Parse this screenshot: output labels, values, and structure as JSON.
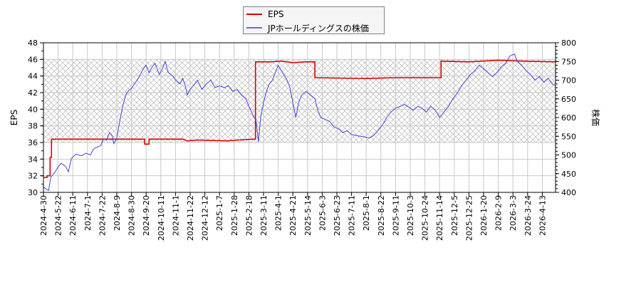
{
  "chart_data": {
    "type": "line",
    "title": "",
    "legend": {
      "position": "top-center",
      "entries": [
        {
          "label": "EPS",
          "color": "#dd0000"
        },
        {
          "label": "JPホールディングスの株価",
          "color": "#4444dd"
        }
      ]
    },
    "grid": true,
    "shaded_band": {
      "y_left_from": 36,
      "y_left_to": 46,
      "pattern": "crosshatch"
    },
    "xlabel": "",
    "x_tick_labels": [
      "2024-4-30",
      "2024-5-22",
      "2024-6-11",
      "2024-7-1",
      "2024-7-22",
      "2024-8-9",
      "2024-8-30",
      "2024-9-20",
      "2024-10-11",
      "2024-11-1",
      "2024-11-22",
      "2024-12-12",
      "2025-1-7",
      "2025-1-28",
      "2025-2-18",
      "2025-3-11",
      "2025-4-1",
      "2025-4-21",
      "2025-5-14",
      "2025-6-3",
      "2025-6-23",
      "2025-7-11",
      "2025-8-1",
      "2025-8-22",
      "2025-9-11",
      "2025-10-3",
      "2025-10-24",
      "2025-11-14",
      "2025-12-5",
      "2025-12-25",
      "2026-1-20",
      "2026-2-9",
      "2026-3-3",
      "2026-3-24",
      "2026-4-13"
    ],
    "y_left": {
      "label": "EPS",
      "range": [
        30,
        48
      ],
      "ticks": [
        30,
        32,
        34,
        36,
        38,
        40,
        42,
        44,
        46,
        48
      ]
    },
    "y_right": {
      "label": "株価",
      "range": [
        400,
        800
      ],
      "ticks": [
        400,
        450,
        500,
        550,
        600,
        650,
        700,
        750,
        800
      ]
    },
    "series": [
      {
        "name": "EPS",
        "axis": "left",
        "color": "#dd0000",
        "step": true,
        "points": [
          [
            0,
            31.8
          ],
          [
            0.25,
            31.8
          ],
          [
            0.25,
            32.0
          ],
          [
            0.45,
            32.0
          ],
          [
            0.45,
            34.2
          ],
          [
            0.55,
            34.2
          ],
          [
            0.55,
            36.4
          ],
          [
            6.9,
            36.4
          ],
          [
            6.9,
            35.8
          ],
          [
            7.2,
            35.8
          ],
          [
            7.2,
            36.4
          ],
          [
            9.5,
            36.4
          ],
          [
            9.8,
            36.2
          ],
          [
            10.5,
            36.3
          ],
          [
            12.5,
            36.2
          ],
          [
            13.3,
            36.3
          ],
          [
            14.3,
            36.4
          ],
          [
            14.45,
            36.4
          ],
          [
            14.45,
            45.7
          ],
          [
            15.5,
            45.7
          ],
          [
            16.2,
            45.8
          ],
          [
            17.0,
            45.6
          ],
          [
            17.9,
            45.7
          ],
          [
            18.5,
            45.7
          ],
          [
            18.5,
            43.8
          ],
          [
            22.0,
            43.7
          ],
          [
            24.0,
            43.8
          ],
          [
            26.0,
            43.8
          ],
          [
            27.1,
            43.8
          ],
          [
            27.1,
            45.8
          ],
          [
            29.0,
            45.7
          ],
          [
            31.0,
            45.9
          ],
          [
            32.5,
            45.8
          ],
          [
            35.0,
            45.7
          ]
        ]
      },
      {
        "name": "JPホールディングスの株価",
        "axis": "right",
        "color": "#4444dd",
        "points": [
          [
            0,
            415
          ],
          [
            0.2,
            408
          ],
          [
            0.35,
            405
          ],
          [
            0.5,
            440
          ],
          [
            0.8,
            455
          ],
          [
            1.0,
            468
          ],
          [
            1.2,
            478
          ],
          [
            1.5,
            470
          ],
          [
            1.7,
            455
          ],
          [
            1.9,
            490
          ],
          [
            2.2,
            502
          ],
          [
            2.6,
            498
          ],
          [
            2.9,
            505
          ],
          [
            3.2,
            500
          ],
          [
            3.4,
            515
          ],
          [
            3.6,
            520
          ],
          [
            3.9,
            525
          ],
          [
            4.1,
            543
          ],
          [
            4.3,
            540
          ],
          [
            4.5,
            560
          ],
          [
            4.7,
            550
          ],
          [
            4.8,
            530
          ],
          [
            5.0,
            545
          ],
          [
            5.2,
            590
          ],
          [
            5.4,
            630
          ],
          [
            5.6,
            660
          ],
          [
            5.8,
            672
          ],
          [
            6.0,
            678
          ],
          [
            6.2,
            690
          ],
          [
            6.4,
            700
          ],
          [
            6.6,
            715
          ],
          [
            6.8,
            730
          ],
          [
            7.0,
            740
          ],
          [
            7.2,
            720
          ],
          [
            7.4,
            735
          ],
          [
            7.6,
            745
          ],
          [
            7.8,
            725
          ],
          [
            7.9,
            715
          ],
          [
            8.1,
            730
          ],
          [
            8.3,
            750
          ],
          [
            8.5,
            720
          ],
          [
            8.8,
            712
          ],
          [
            9.0,
            700
          ],
          [
            9.3,
            690
          ],
          [
            9.5,
            705
          ],
          [
            9.7,
            680
          ],
          [
            9.8,
            660
          ],
          [
            10.0,
            675
          ],
          [
            10.3,
            690
          ],
          [
            10.5,
            700
          ],
          [
            10.8,
            675
          ],
          [
            11.1,
            690
          ],
          [
            11.4,
            700
          ],
          [
            11.7,
            680
          ],
          [
            12.0,
            685
          ],
          [
            12.3,
            680
          ],
          [
            12.6,
            685
          ],
          [
            12.9,
            670
          ],
          [
            13.2,
            675
          ],
          [
            13.5,
            660
          ],
          [
            13.8,
            650
          ],
          [
            14.0,
            630
          ],
          [
            14.3,
            605
          ],
          [
            14.5,
            590
          ],
          [
            14.65,
            535
          ],
          [
            14.8,
            600
          ],
          [
            15.0,
            640
          ],
          [
            15.2,
            670
          ],
          [
            15.4,
            690
          ],
          [
            15.6,
            700
          ],
          [
            15.8,
            720
          ],
          [
            16.0,
            740
          ],
          [
            16.3,
            720
          ],
          [
            16.6,
            700
          ],
          [
            16.8,
            680
          ],
          [
            17.0,
            640
          ],
          [
            17.2,
            600
          ],
          [
            17.4,
            640
          ],
          [
            17.6,
            660
          ],
          [
            17.9,
            670
          ],
          [
            18.2,
            660
          ],
          [
            18.5,
            650
          ],
          [
            18.7,
            620
          ],
          [
            18.9,
            600
          ],
          [
            19.2,
            595
          ],
          [
            19.5,
            590
          ],
          [
            19.8,
            575
          ],
          [
            20.1,
            570
          ],
          [
            20.4,
            560
          ],
          [
            20.7,
            565
          ],
          [
            21.0,
            555
          ],
          [
            21.3,
            552
          ],
          [
            21.6,
            550
          ],
          [
            21.9,
            548
          ],
          [
            22.2,
            545
          ],
          [
            22.5,
            552
          ],
          [
            22.8,
            565
          ],
          [
            23.1,
            580
          ],
          [
            23.4,
            600
          ],
          [
            23.7,
            615
          ],
          [
            24.0,
            625
          ],
          [
            24.3,
            630
          ],
          [
            24.6,
            635
          ],
          [
            24.9,
            628
          ],
          [
            25.2,
            620
          ],
          [
            25.5,
            630
          ],
          [
            25.8,
            625
          ],
          [
            26.1,
            615
          ],
          [
            26.4,
            630
          ],
          [
            26.7,
            620
          ],
          [
            27.0,
            600
          ],
          [
            27.3,
            615
          ],
          [
            27.6,
            630
          ],
          [
            27.9,
            650
          ],
          [
            28.2,
            665
          ],
          [
            28.5,
            685
          ],
          [
            28.8,
            700
          ],
          [
            29.1,
            715
          ],
          [
            29.4,
            725
          ],
          [
            29.7,
            740
          ],
          [
            30.0,
            730
          ],
          [
            30.3,
            720
          ],
          [
            30.6,
            710
          ],
          [
            30.9,
            720
          ],
          [
            31.2,
            735
          ],
          [
            31.5,
            745
          ],
          [
            31.8,
            765
          ],
          [
            32.1,
            770
          ],
          [
            32.3,
            750
          ],
          [
            32.6,
            740
          ],
          [
            32.9,
            725
          ],
          [
            33.2,
            715
          ],
          [
            33.5,
            700
          ],
          [
            33.8,
            710
          ],
          [
            34.1,
            695
          ],
          [
            34.4,
            705
          ],
          [
            34.7,
            690
          ],
          [
            35.0,
            685
          ]
        ]
      }
    ]
  }
}
